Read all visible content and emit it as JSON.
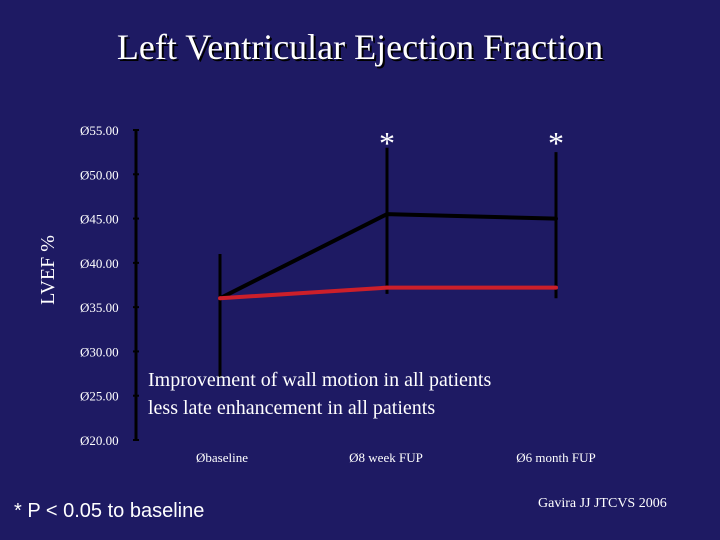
{
  "slide": {
    "title": "Left Ventricular Ejection Fraction",
    "footnote": "* P < 0.05 to baseline",
    "citation": "Gavira JJ JTCVS 2006"
  },
  "chart_data": {
    "type": "line",
    "title": "Left Ventricular Ejection Fraction",
    "ylabel": "LVEF %",
    "xlabel": "",
    "tick_marker": "Ø",
    "y_ticks": [
      "55.00",
      "50.00",
      "45.00",
      "40.00",
      "35.00",
      "30.00",
      "25.00",
      "20.00"
    ],
    "ylim": [
      20,
      55
    ],
    "categories": [
      "baseline",
      "8 week FUP",
      "6 month FUP"
    ],
    "series": [
      {
        "color": "#000000",
        "values": [
          36.0,
          45.5,
          45.0
        ],
        "error_high": [
          41.0,
          53.0,
          52.5
        ],
        "error_low": [
          27.0,
          36.5,
          36.0
        ]
      },
      {
        "color": "#cc1f2a",
        "values": [
          36.0,
          37.2,
          37.2
        ]
      }
    ],
    "significance_markers": [
      "",
      "*",
      "*"
    ],
    "annotations": [
      "Improvement of wall motion in all patients",
      "less late enhancement in all patients"
    ],
    "colors": {
      "background": "#1e1a63",
      "axis": "#000000",
      "text": "#ffffff"
    }
  }
}
